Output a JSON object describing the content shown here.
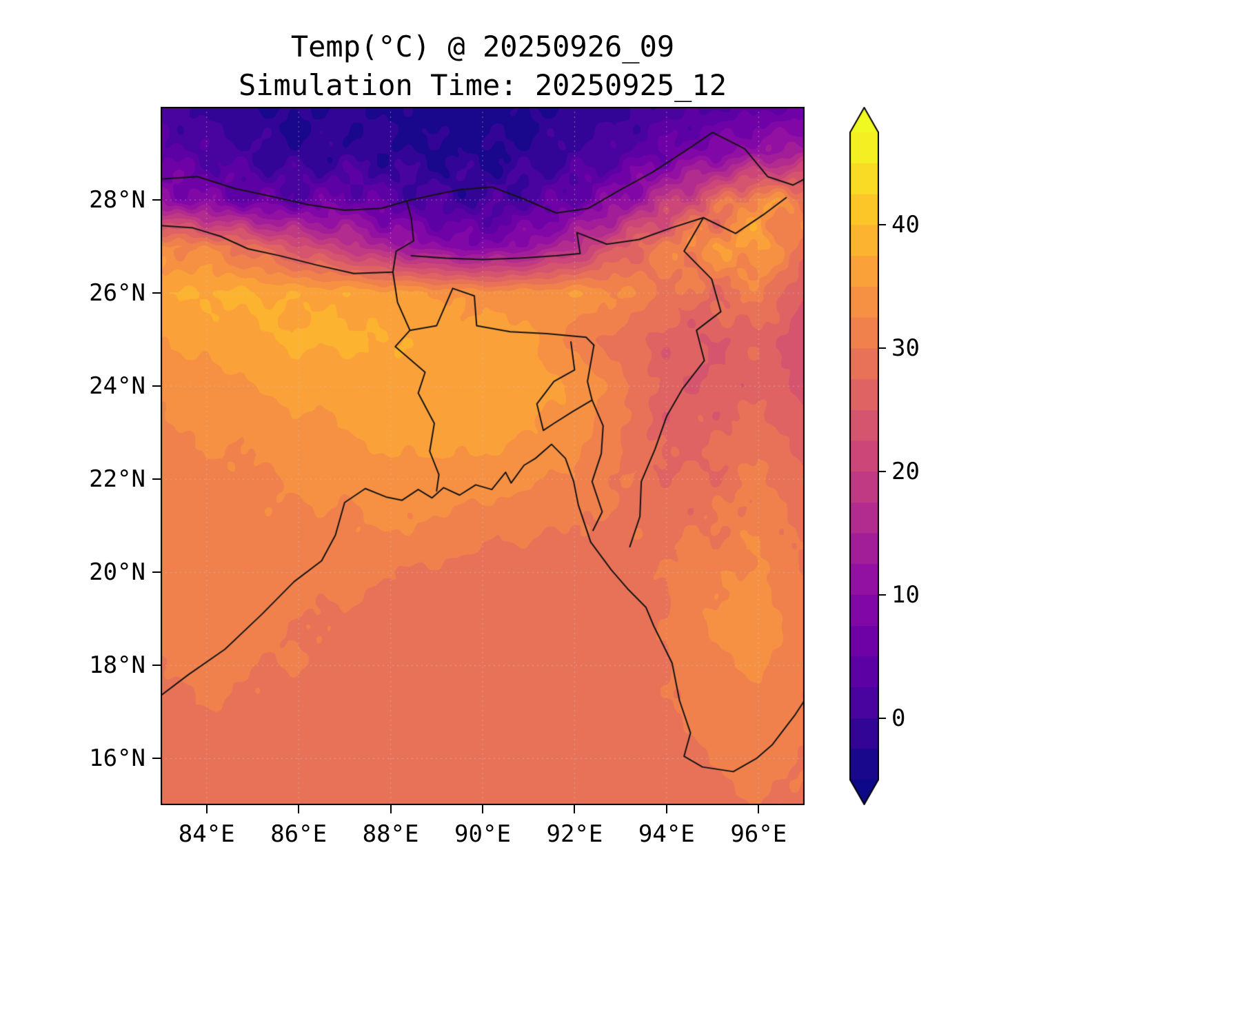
{
  "chart_data": {
    "type": "heatmap",
    "title": "Temp(°C) @ 20250926_09",
    "subtitle": "Simulation Time: 20250925_12",
    "xlabel": "",
    "ylabel": "",
    "grid_on": true,
    "lon_range": [
      83,
      97
    ],
    "lat_range": [
      15,
      30
    ],
    "x_tick_values": [
      84,
      86,
      88,
      90,
      92,
      94,
      96
    ],
    "x_tick_labels": [
      "84°E",
      "86°E",
      "88°E",
      "90°E",
      "92°E",
      "94°E",
      "96°E"
    ],
    "y_tick_values": [
      16,
      18,
      20,
      22,
      24,
      26,
      28
    ],
    "y_tick_labels": [
      "16°N",
      "18°N",
      "20°N",
      "22°N",
      "24°N",
      "26°N",
      "28°N"
    ],
    "contour_levels": {
      "min": -5,
      "max": 47.5,
      "step": 2.5
    },
    "colormap": {
      "name": "plasma",
      "anchors": [
        {
          "t": 0.0,
          "color": "#0d0887"
        },
        {
          "t": 0.1,
          "color": "#41049d"
        },
        {
          "t": 0.2,
          "color": "#6a00a8"
        },
        {
          "t": 0.3,
          "color": "#8f0da4"
        },
        {
          "t": 0.4,
          "color": "#b12a90"
        },
        {
          "t": 0.5,
          "color": "#cc4778"
        },
        {
          "t": 0.6,
          "color": "#e16462"
        },
        {
          "t": 0.7,
          "color": "#f2844b"
        },
        {
          "t": 0.8,
          "color": "#fca636"
        },
        {
          "t": 0.9,
          "color": "#fcce25"
        },
        {
          "t": 1.0,
          "color": "#f0f921"
        }
      ]
    },
    "colorbar": {
      "extend": "both",
      "tick_values": [
        0,
        10,
        20,
        30,
        40
      ],
      "tick_labels": [
        "0",
        "10",
        "20",
        "30",
        "40"
      ]
    },
    "grid": {
      "comment": "Estimated surface temperature (°C) read from the contour fill, on a 1° grid; rows are latitudes from north (30N) to south (15N), columns are longitudes 83E..97E",
      "lons": [
        83,
        84,
        85,
        86,
        87,
        88,
        89,
        90,
        91,
        92,
        93,
        94,
        95,
        96,
        97
      ],
      "lats": [
        30,
        29,
        28,
        27,
        26,
        25,
        24,
        23,
        22,
        21,
        20,
        19,
        18,
        17,
        16,
        15
      ],
      "temps_c": [
        [
          1,
          -1,
          -2.5,
          -3,
          -2,
          -3,
          -4,
          -4,
          -3,
          -2,
          -1,
          1,
          2,
          4,
          5
        ],
        [
          4,
          2,
          0,
          -2,
          -1,
          -2,
          -3,
          -3,
          -2,
          0,
          2,
          6,
          9,
          12,
          15
        ],
        [
          11,
          8,
          5,
          4,
          6,
          3,
          1,
          0,
          2,
          5,
          10,
          18,
          26,
          34,
          31
        ],
        [
          33,
          32,
          28,
          23,
          19,
          14,
          10,
          8,
          11,
          17,
          25,
          31,
          34,
          36,
          29
        ],
        [
          37,
          38,
          38,
          37,
          37,
          36,
          35,
          34,
          34,
          35,
          33,
          30,
          28,
          31,
          25
        ],
        [
          35,
          36,
          37,
          38,
          38,
          37.5,
          37,
          36,
          36,
          31,
          29,
          26,
          25,
          27,
          23
        ],
        [
          33,
          34,
          35,
          36,
          36,
          37,
          37,
          37,
          36,
          35,
          31,
          26,
          25,
          27,
          24
        ],
        [
          32,
          33,
          33,
          34,
          35,
          36,
          36,
          36,
          35,
          34,
          30,
          26,
          27,
          29,
          26
        ],
        [
          31,
          32,
          32,
          33,
          33,
          34,
          34,
          34,
          33,
          32,
          30,
          28,
          28,
          31,
          28
        ],
        [
          30.5,
          31,
          32,
          32,
          32,
          33,
          32,
          31,
          30.5,
          30,
          29.5,
          29,
          30,
          32,
          29
        ],
        [
          31.5,
          32,
          31,
          31,
          31,
          30,
          29.5,
          29,
          28.6,
          28.6,
          29,
          30,
          32,
          33,
          30
        ],
        [
          31,
          32,
          31,
          30,
          29.5,
          29,
          28.6,
          28.6,
          28.6,
          28.6,
          29,
          30,
          33,
          34,
          31
        ],
        [
          30,
          31,
          30,
          30,
          29,
          28.6,
          28.6,
          28.6,
          28.6,
          28.6,
          28.8,
          30,
          32,
          33,
          31
        ],
        [
          29,
          30,
          29.5,
          29,
          28.6,
          28.6,
          28.6,
          28.6,
          28.6,
          28.6,
          28.8,
          29.5,
          31,
          32,
          30
        ],
        [
          28.8,
          29,
          29,
          28.6,
          28.6,
          28.6,
          28.6,
          28.6,
          28.6,
          28.6,
          28.8,
          29,
          30,
          31,
          30
        ],
        [
          28.6,
          28.6,
          28.6,
          28.6,
          28.6,
          28.6,
          28.6,
          28.6,
          28.6,
          28.6,
          28.8,
          29,
          29.5,
          30,
          29.5
        ]
      ]
    },
    "map_overlays": {
      "line_color": "#141414",
      "polylines": [
        {
          "name": "coastline-bay-of-bengal",
          "points": [
            [
              83.0,
              17.35
            ],
            [
              83.6,
              17.8
            ],
            [
              84.4,
              18.35
            ],
            [
              85.2,
              19.1
            ],
            [
              85.9,
              19.8
            ],
            [
              86.5,
              20.25
            ],
            [
              86.8,
              20.8
            ],
            [
              87.0,
              21.5
            ],
            [
              87.45,
              21.8
            ],
            [
              87.9,
              21.62
            ],
            [
              88.25,
              21.55
            ],
            [
              88.6,
              21.78
            ],
            [
              88.9,
              21.6
            ],
            [
              89.15,
              21.82
            ],
            [
              89.5,
              21.66
            ],
            [
              89.85,
              21.88
            ],
            [
              90.2,
              21.78
            ],
            [
              90.5,
              22.15
            ],
            [
              90.62,
              21.92
            ],
            [
              90.9,
              22.3
            ],
            [
              91.15,
              22.45
            ],
            [
              91.5,
              22.75
            ],
            [
              91.8,
              22.45
            ],
            [
              91.98,
              21.95
            ],
            [
              92.08,
              21.45
            ],
            [
              92.35,
              20.65
            ],
            [
              92.8,
              20.05
            ],
            [
              93.15,
              19.65
            ],
            [
              93.55,
              19.25
            ],
            [
              93.72,
              18.85
            ],
            [
              94.12,
              18.05
            ],
            [
              94.28,
              17.25
            ],
            [
              94.52,
              16.55
            ],
            [
              94.38,
              16.05
            ],
            [
              94.78,
              15.82
            ],
            [
              95.45,
              15.72
            ],
            [
              95.95,
              16.0
            ],
            [
              96.3,
              16.3
            ],
            [
              96.8,
              16.95
            ],
            [
              97.0,
              17.25
            ]
          ]
        },
        {
          "name": "himalaya-north-border",
          "points": [
            [
              83.0,
              28.45
            ],
            [
              83.8,
              28.5
            ],
            [
              84.6,
              28.25
            ],
            [
              85.4,
              28.08
            ],
            [
              86.2,
              27.9
            ],
            [
              87.0,
              27.78
            ],
            [
              87.8,
              27.82
            ],
            [
              88.35,
              27.98
            ],
            [
              88.9,
              28.1
            ],
            [
              89.5,
              28.22
            ],
            [
              90.2,
              28.28
            ],
            [
              90.9,
              28.02
            ],
            [
              91.6,
              27.72
            ],
            [
              92.3,
              27.82
            ],
            [
              93.0,
              28.22
            ],
            [
              93.7,
              28.6
            ],
            [
              94.4,
              29.05
            ],
            [
              95.0,
              29.45
            ],
            [
              95.7,
              29.1
            ],
            [
              96.2,
              28.5
            ],
            [
              96.75,
              28.32
            ],
            [
              97.0,
              28.45
            ]
          ]
        },
        {
          "name": "nepal-south-border",
          "points": [
            [
              83.0,
              27.45
            ],
            [
              83.7,
              27.4
            ],
            [
              84.3,
              27.22
            ],
            [
              84.9,
              26.95
            ],
            [
              85.6,
              26.8
            ],
            [
              86.4,
              26.6
            ],
            [
              87.2,
              26.42
            ],
            [
              88.05,
              26.45
            ]
          ]
        },
        {
          "name": "sikkim-border",
          "points": [
            [
              88.05,
              26.45
            ],
            [
              88.12,
              26.9
            ],
            [
              88.5,
              27.12
            ],
            [
              88.45,
              27.6
            ],
            [
              88.35,
              27.98
            ]
          ]
        },
        {
          "name": "bhutan-arunachal-border",
          "points": [
            [
              88.45,
              26.8
            ],
            [
              89.2,
              26.75
            ],
            [
              90.0,
              26.72
            ],
            [
              90.8,
              26.75
            ],
            [
              91.6,
              26.8
            ],
            [
              92.12,
              26.85
            ],
            [
              92.05,
              27.3
            ],
            [
              92.7,
              27.05
            ],
            [
              93.4,
              27.15
            ],
            [
              94.1,
              27.4
            ],
            [
              94.8,
              27.62
            ],
            [
              95.5,
              27.28
            ],
            [
              96.1,
              27.68
            ],
            [
              96.6,
              28.05
            ]
          ]
        },
        {
          "name": "bangladesh-west-border",
          "points": [
            [
              88.05,
              26.45
            ],
            [
              88.15,
              25.8
            ],
            [
              88.42,
              25.2
            ],
            [
              88.1,
              24.85
            ],
            [
              88.75,
              24.3
            ],
            [
              88.6,
              23.85
            ],
            [
              88.95,
              23.2
            ],
            [
              88.85,
              22.6
            ],
            [
              89.05,
              22.1
            ],
            [
              89.0,
              21.75
            ]
          ]
        },
        {
          "name": "bangladesh-north-border",
          "points": [
            [
              88.42,
              25.2
            ],
            [
              89.0,
              25.3
            ],
            [
              89.35,
              26.1
            ],
            [
              89.82,
              25.94
            ],
            [
              89.87,
              25.3
            ],
            [
              90.6,
              25.17
            ],
            [
              91.4,
              25.13
            ],
            [
              92.25,
              25.05
            ],
            [
              92.42,
              24.88
            ]
          ]
        },
        {
          "name": "bangladesh-east-border",
          "points": [
            [
              92.42,
              24.88
            ],
            [
              92.28,
              24.1
            ],
            [
              92.38,
              23.7
            ],
            [
              91.95,
              23.45
            ],
            [
              91.55,
              23.2
            ],
            [
              91.32,
              23.05
            ],
            [
              91.18,
              23.62
            ],
            [
              91.55,
              24.1
            ],
            [
              92.0,
              24.35
            ],
            [
              91.92,
              24.95
            ]
          ]
        },
        {
          "name": "chittagong-hill-border",
          "points": [
            [
              92.38,
              23.7
            ],
            [
              92.62,
              23.15
            ],
            [
              92.58,
              22.55
            ],
            [
              92.38,
              21.95
            ],
            [
              92.6,
              21.3
            ],
            [
              92.4,
              20.9
            ]
          ]
        },
        {
          "name": "indo-myanmar-border",
          "points": [
            [
              94.8,
              27.62
            ],
            [
              94.38,
              26.9
            ],
            [
              94.98,
              26.3
            ],
            [
              95.18,
              25.6
            ],
            [
              94.65,
              25.2
            ],
            [
              94.82,
              24.55
            ],
            [
              94.35,
              23.95
            ],
            [
              94.0,
              23.35
            ],
            [
              93.75,
              22.65
            ],
            [
              93.45,
              21.95
            ],
            [
              93.42,
              21.2
            ],
            [
              93.2,
              20.55
            ]
          ]
        }
      ]
    }
  }
}
